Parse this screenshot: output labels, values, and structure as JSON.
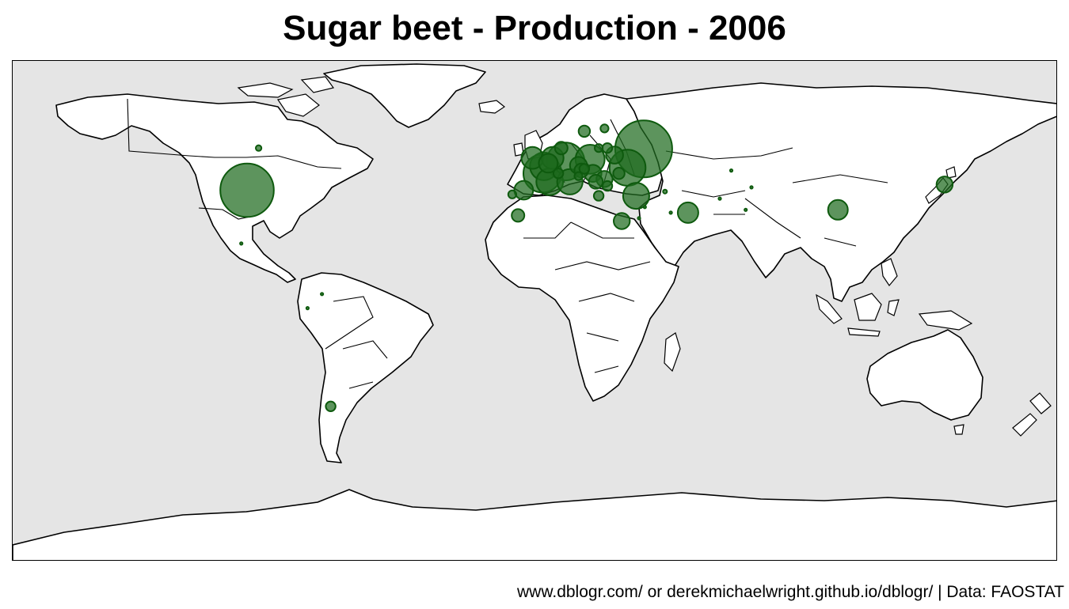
{
  "title": "Sugar beet - Production - 2006",
  "caption": "www.dblogr.com/ or derekmichaelwright.github.io/dblogr/ | Data: FAOSTAT",
  "colors": {
    "background": "#e5e5e5",
    "land": "#ffffff",
    "outline": "#000000",
    "bubble": "#1f6b1f"
  },
  "chart_data": {
    "type": "bubble-map",
    "value_encoding": "bubble area relative to largest producer",
    "points": [
      {
        "lon": 37.6,
        "lat": 55.7,
        "value": 1.0
      },
      {
        "lon": -100,
        "lat": 41,
        "value": 0.88
      },
      {
        "lon": 2.5,
        "lat": 47,
        "value": 0.45
      },
      {
        "lon": 10.5,
        "lat": 51.2,
        "value": 0.44
      },
      {
        "lon": 32,
        "lat": 49,
        "value": 0.4
      },
      {
        "lon": 19,
        "lat": 52,
        "value": 0.26
      },
      {
        "lon": 3,
        "lat": 49.5,
        "value": 0.24
      },
      {
        "lon": -1,
        "lat": 52.5,
        "value": 0.15
      },
      {
        "lon": 5,
        "lat": 44,
        "value": 0.22
      },
      {
        "lon": 12,
        "lat": 44,
        "value": 0.2
      },
      {
        "lon": 35,
        "lat": 39,
        "value": 0.21
      },
      {
        "lon": 6,
        "lat": 52.5,
        "value": 0.15
      },
      {
        "lon": 4.5,
        "lat": 50.6,
        "value": 0.11
      },
      {
        "lon": -4,
        "lat": 41,
        "value": 0.11
      },
      {
        "lon": 15,
        "lat": 49.8,
        "value": 0.09
      },
      {
        "lon": 20,
        "lat": 47,
        "value": 0.09
      },
      {
        "lon": 16,
        "lat": 48,
        "value": 0.06
      },
      {
        "lon": 27.5,
        "lat": 53.5,
        "value": 0.09
      },
      {
        "lon": 24,
        "lat": 45,
        "value": 0.08
      },
      {
        "lon": 21,
        "lat": 44,
        "value": 0.06
      },
      {
        "lon": 9,
        "lat": 56,
        "value": 0.05
      },
      {
        "lon": 17,
        "lat": 62,
        "value": 0.04
      },
      {
        "lon": 25,
        "lat": 56,
        "value": 0.03
      },
      {
        "lon": 24,
        "lat": 63,
        "value": 0.02
      },
      {
        "lon": 17,
        "lat": 48.6,
        "value": 0.03
      },
      {
        "lon": 15,
        "lat": 46,
        "value": 0.02
      },
      {
        "lon": 8,
        "lat": 47,
        "value": 0.03
      },
      {
        "lon": 25,
        "lat": 42.5,
        "value": 0.03
      },
      {
        "lon": 22,
        "lat": 39,
        "value": 0.03
      },
      {
        "lon": 29,
        "lat": 47,
        "value": 0.04
      },
      {
        "lon": 22,
        "lat": 56,
        "value": 0.02
      },
      {
        "lon": -8,
        "lat": 39.5,
        "value": 0.02
      },
      {
        "lon": 53,
        "lat": 33,
        "value": 0.13
      },
      {
        "lon": 30,
        "lat": 30,
        "value": 0.08
      },
      {
        "lon": 105,
        "lat": 34,
        "value": 0.12
      },
      {
        "lon": 142,
        "lat": 43,
        "value": 0.08
      },
      {
        "lon": -6,
        "lat": 32,
        "value": 0.05
      },
      {
        "lon": -71,
        "lat": -36,
        "value": 0.03
      },
      {
        "lon": -96,
        "lat": 56,
        "value": 0.01
      },
      {
        "lon": 45,
        "lat": 40.5,
        "value": 0.005
      },
      {
        "lon": 68,
        "lat": 48,
        "value": 0.002
      },
      {
        "lon": 75,
        "lat": 42,
        "value": 0.002
      },
      {
        "lon": 73,
        "lat": 34,
        "value": 0.001
      },
      {
        "lon": 64,
        "lat": 38,
        "value": 0.001
      },
      {
        "lon": -102,
        "lat": 22,
        "value": 0.0008
      },
      {
        "lon": -74,
        "lat": 4,
        "value": 0.0008
      },
      {
        "lon": -79,
        "lat": -1,
        "value": 0.0008
      },
      {
        "lon": 38,
        "lat": 35,
        "value": 0.002
      },
      {
        "lon": 36,
        "lat": 31,
        "value": 0.0008
      },
      {
        "lon": 47,
        "lat": 33,
        "value": 0.0008
      }
    ]
  }
}
